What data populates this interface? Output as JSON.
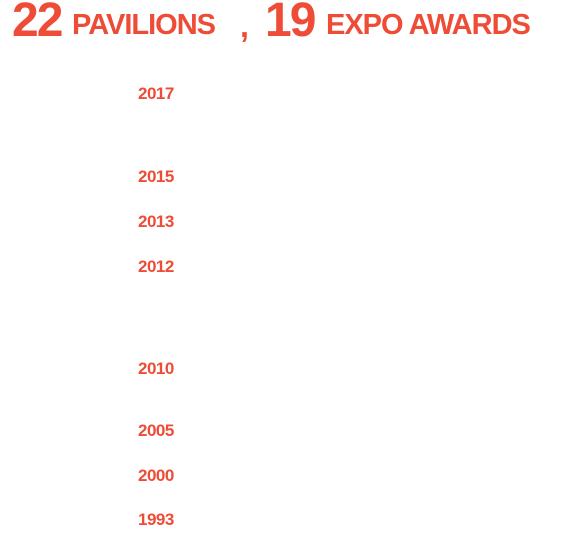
{
  "headline": {
    "pavilions_count": "22",
    "pavilions_label": "PAVILIONS",
    "separator": ",",
    "awards_count": "19",
    "awards_label": "EXPO AWARDS"
  },
  "years": [
    "2017",
    "2015",
    "2013",
    "2012",
    "2010",
    "2005",
    "2000",
    "1993"
  ],
  "colors": {
    "accent": "#ee4c37",
    "background": "#ffffff"
  }
}
